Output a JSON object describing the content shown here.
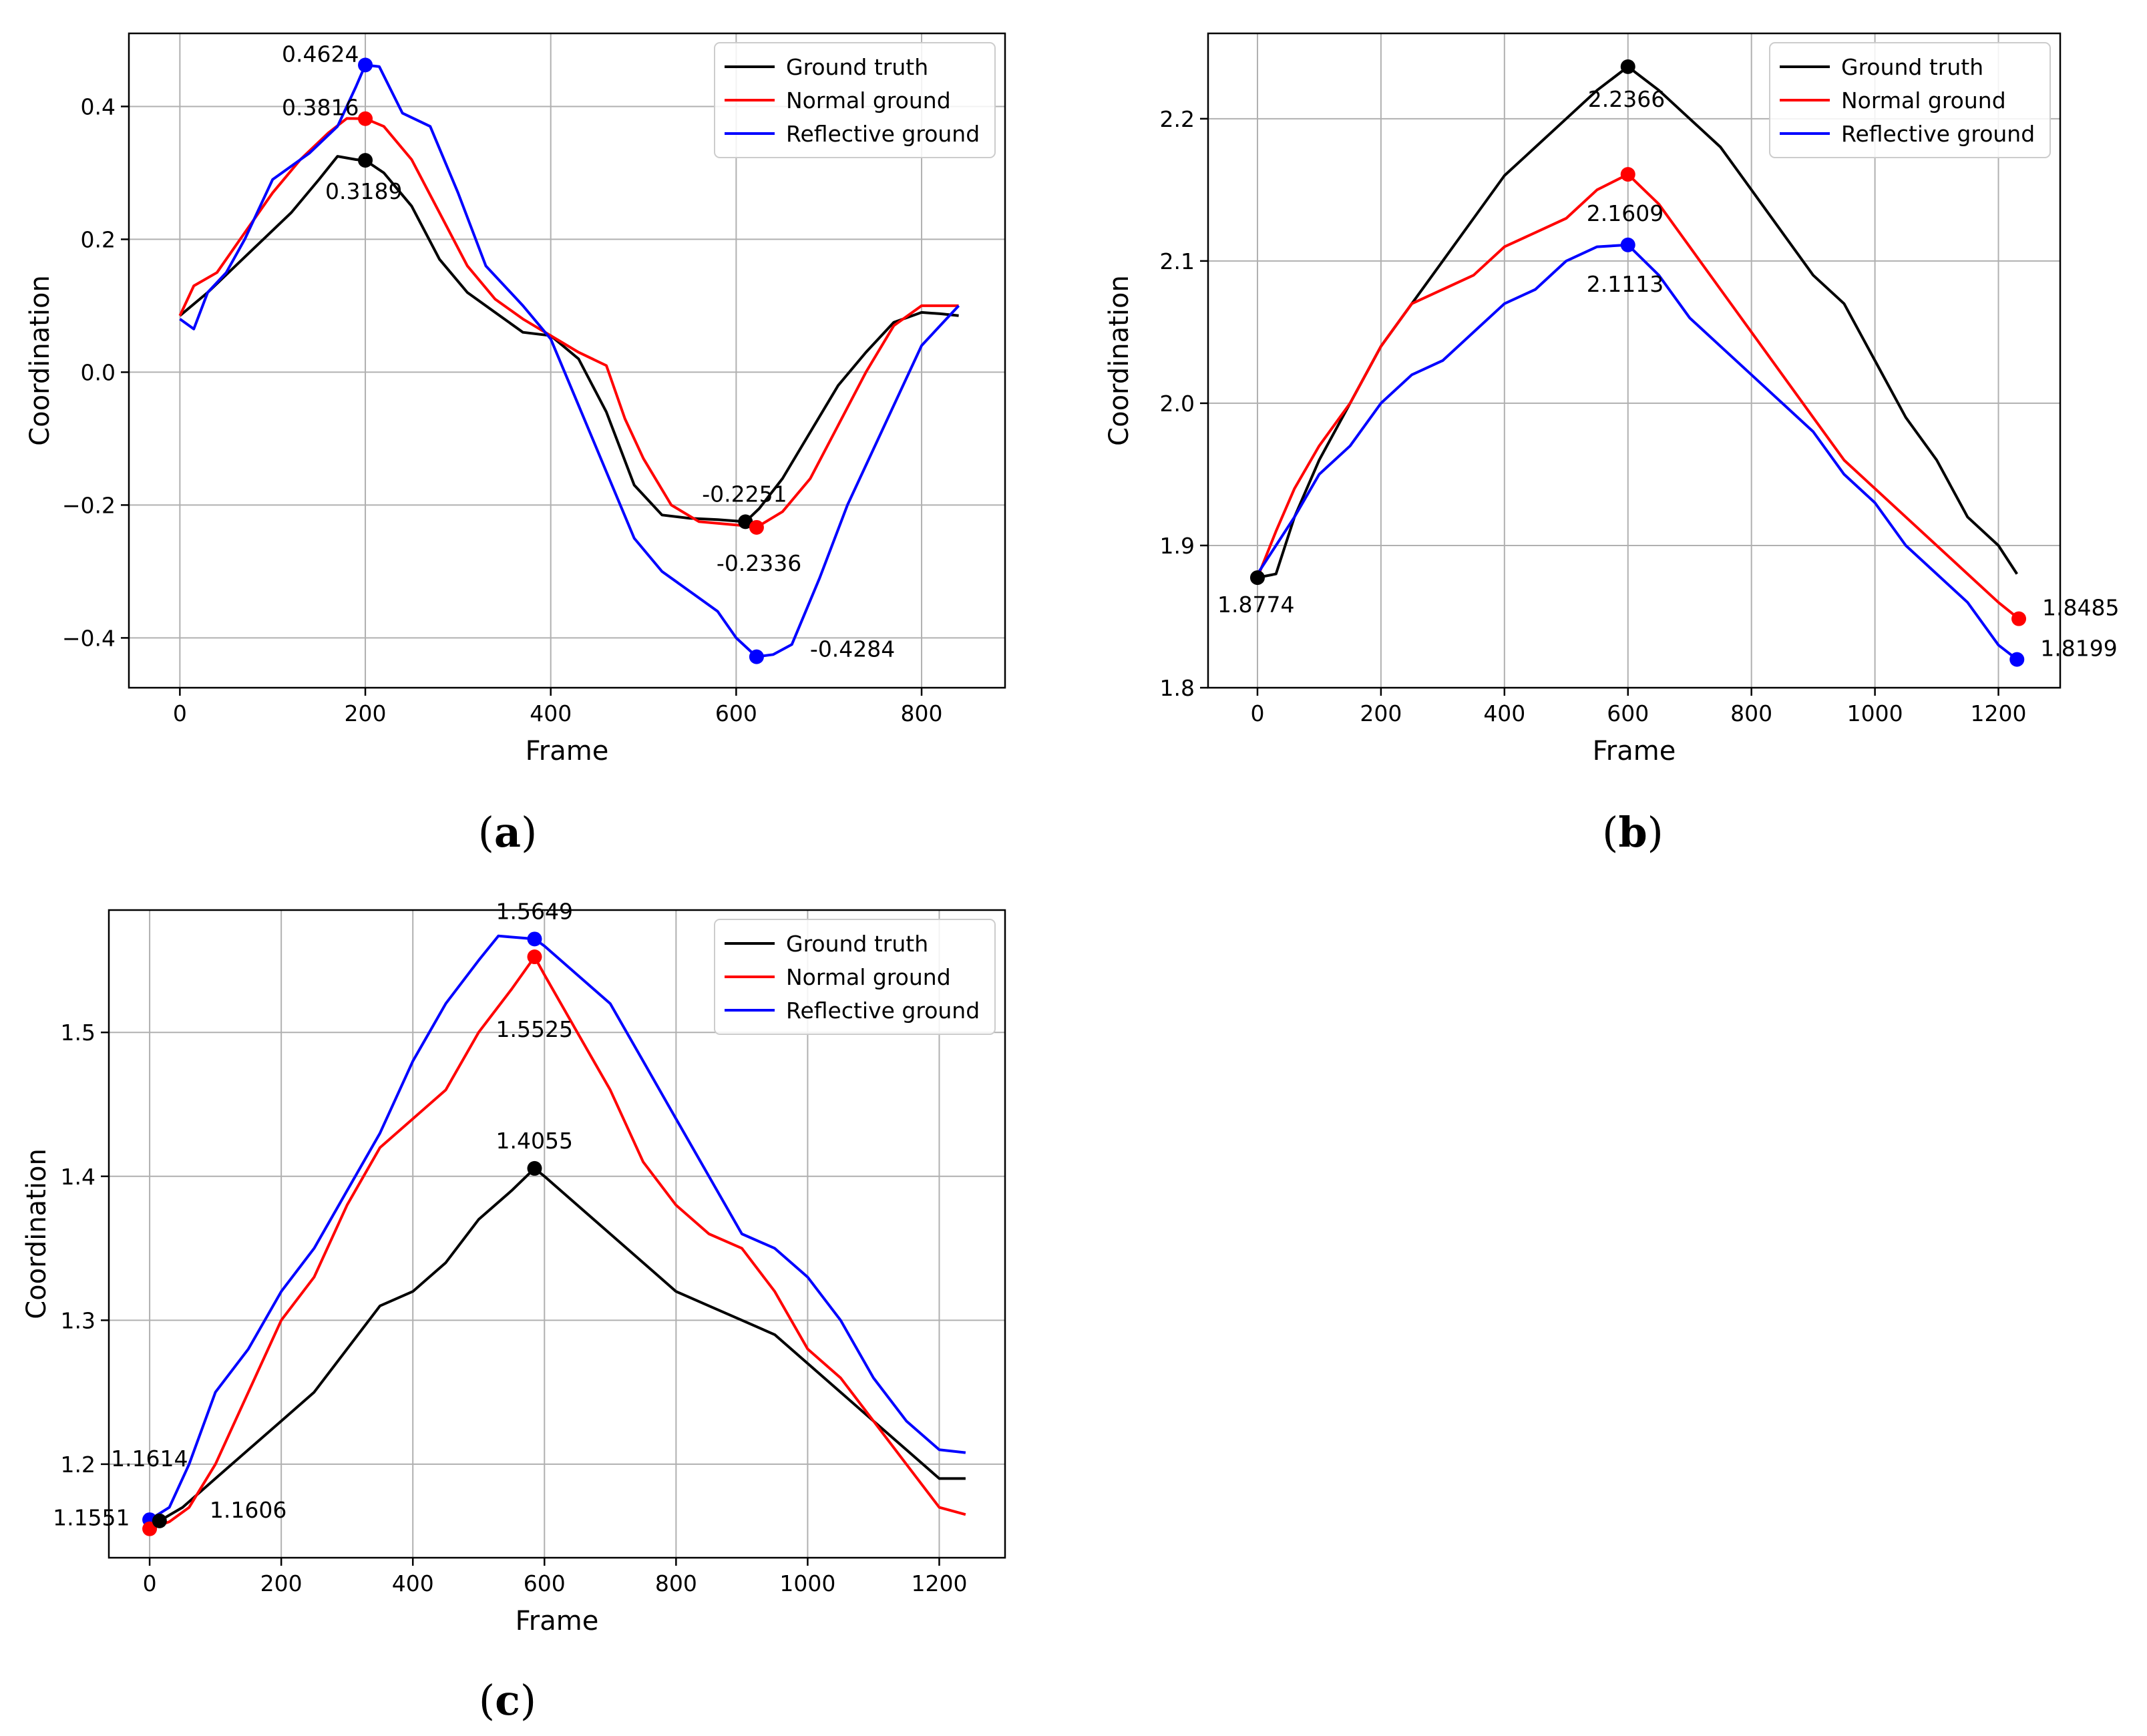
{
  "chart_data": [
    {
      "id": "a",
      "type": "line",
      "caption": "a",
      "xlabel": "Frame",
      "ylabel": "Coordination",
      "xlim": [
        -55,
        890
      ],
      "ylim": [
        -0.475,
        0.51
      ],
      "xticks": [
        0,
        200,
        400,
        600,
        800
      ],
      "xtick_labels": [
        "0",
        "200",
        "400",
        "600",
        "800"
      ],
      "yticks": [
        -0.4,
        -0.2,
        0.0,
        0.2,
        0.4
      ],
      "ytick_labels": [
        "−0.4",
        "−0.2",
        "0.0",
        "0.2",
        "0.4"
      ],
      "grid": true,
      "legend_position": "top-right",
      "series": [
        {
          "name": "Ground truth",
          "color": "#000000",
          "x": [
            0,
            30,
            60,
            90,
            120,
            150,
            170,
            190,
            200,
            220,
            250,
            280,
            310,
            340,
            370,
            400,
            430,
            460,
            490,
            520,
            550,
            580,
            610,
            625,
            650,
            680,
            710,
            740,
            770,
            800,
            820,
            840
          ],
          "y": [
            0.085,
            0.12,
            0.16,
            0.2,
            0.24,
            0.29,
            0.325,
            0.32,
            0.3189,
            0.3,
            0.25,
            0.17,
            0.12,
            0.09,
            0.06,
            0.055,
            0.02,
            -0.06,
            -0.17,
            -0.215,
            -0.22,
            -0.222,
            -0.2251,
            -0.205,
            -0.16,
            -0.09,
            -0.02,
            0.03,
            0.075,
            0.09,
            0.088,
            0.085
          ]
        },
        {
          "name": "Normal ground",
          "color": "#ff0000",
          "x": [
            0,
            15,
            40,
            70,
            100,
            130,
            160,
            180,
            200,
            220,
            250,
            280,
            310,
            340,
            370,
            400,
            430,
            460,
            480,
            500,
            530,
            560,
            600,
            622,
            650,
            680,
            710,
            740,
            770,
            800,
            830,
            840
          ],
          "y": [
            0.085,
            0.13,
            0.15,
            0.21,
            0.27,
            0.32,
            0.36,
            0.382,
            0.3816,
            0.37,
            0.32,
            0.24,
            0.16,
            0.11,
            0.08,
            0.055,
            0.03,
            0.01,
            -0.07,
            -0.13,
            -0.2,
            -0.225,
            -0.23,
            -0.2336,
            -0.21,
            -0.16,
            -0.08,
            0.0,
            0.07,
            0.1,
            0.1,
            0.1
          ]
        },
        {
          "name": "Reflective ground",
          "color": "#0000ff",
          "x": [
            0,
            15,
            30,
            50,
            70,
            100,
            140,
            170,
            190,
            200,
            215,
            240,
            270,
            300,
            330,
            370,
            400,
            430,
            460,
            490,
            520,
            550,
            580,
            600,
            622,
            640,
            660,
            690,
            720,
            760,
            800,
            840
          ],
          "y": [
            0.08,
            0.065,
            0.12,
            0.15,
            0.2,
            0.29,
            0.33,
            0.37,
            0.43,
            0.4624,
            0.46,
            0.39,
            0.37,
            0.27,
            0.16,
            0.1,
            0.05,
            -0.05,
            -0.15,
            -0.25,
            -0.3,
            -0.33,
            -0.36,
            -0.4,
            -0.4284,
            -0.425,
            -0.41,
            -0.31,
            -0.2,
            -0.08,
            0.04,
            0.1
          ]
        }
      ],
      "points": [
        {
          "series": "Reflective ground",
          "x": 200,
          "y": 0.4624,
          "label": "0.4624",
          "color": "#0000ff"
        },
        {
          "series": "Normal ground",
          "x": 200,
          "y": 0.3816,
          "label": "0.3816",
          "color": "#ff0000"
        },
        {
          "series": "Ground truth",
          "x": 200,
          "y": 0.3189,
          "label": "0.3189",
          "color": "#000000"
        },
        {
          "series": "Ground truth",
          "x": 610,
          "y": -0.2251,
          "label": "-0.2251",
          "color": "#000000"
        },
        {
          "series": "Normal ground",
          "x": 622,
          "y": -0.2336,
          "label": "-0.2336",
          "color": "#ff0000"
        },
        {
          "series": "Reflective ground",
          "x": 622,
          "y": -0.4284,
          "label": "-0.4284",
          "color": "#0000ff"
        }
      ]
    },
    {
      "id": "b",
      "type": "line",
      "caption": "b",
      "xlabel": "Frame",
      "ylabel": "Coordination",
      "xlim": [
        -80,
        1300
      ],
      "ylim": [
        1.8,
        2.26
      ],
      "xticks": [
        0,
        200,
        400,
        600,
        800,
        1000,
        1200
      ],
      "xtick_labels": [
        "0",
        "200",
        "400",
        "600",
        "800",
        "1000",
        "1200"
      ],
      "yticks": [
        1.8,
        1.9,
        2.0,
        2.1,
        2.2
      ],
      "ytick_labels": [
        "1.8",
        "1.9",
        "2.0",
        "2.1",
        "2.2"
      ],
      "grid": true,
      "legend_position": "top-right",
      "series": [
        {
          "name": "Ground truth",
          "color": "#000000",
          "x": [
            0,
            30,
            60,
            100,
            150,
            200,
            250,
            300,
            350,
            400,
            450,
            500,
            550,
            600,
            650,
            700,
            750,
            800,
            850,
            900,
            950,
            1000,
            1050,
            1100,
            1150,
            1200,
            1230
          ],
          "y": [
            1.8774,
            1.88,
            1.92,
            1.96,
            2.0,
            2.04,
            2.07,
            2.1,
            2.13,
            2.16,
            2.18,
            2.2,
            2.22,
            2.2366,
            2.22,
            2.2,
            2.18,
            2.15,
            2.12,
            2.09,
            2.07,
            2.03,
            1.99,
            1.96,
            1.92,
            1.9,
            1.88
          ]
        },
        {
          "name": "Normal ground",
          "color": "#ff0000",
          "x": [
            0,
            30,
            60,
            100,
            150,
            200,
            250,
            300,
            350,
            400,
            450,
            500,
            550,
            600,
            650,
            700,
            750,
            800,
            850,
            900,
            950,
            1000,
            1050,
            1100,
            1150,
            1200,
            1233
          ],
          "y": [
            1.8774,
            1.91,
            1.94,
            1.97,
            2.0,
            2.04,
            2.07,
            2.08,
            2.09,
            2.11,
            2.12,
            2.13,
            2.15,
            2.1609,
            2.14,
            2.11,
            2.08,
            2.05,
            2.02,
            1.99,
            1.96,
            1.94,
            1.92,
            1.9,
            1.88,
            1.86,
            1.8485
          ]
        },
        {
          "name": "Reflective ground",
          "color": "#0000ff",
          "x": [
            0,
            30,
            60,
            100,
            150,
            200,
            250,
            300,
            350,
            400,
            450,
            500,
            550,
            600,
            650,
            700,
            750,
            800,
            850,
            900,
            950,
            1000,
            1050,
            1100,
            1150,
            1200,
            1230
          ],
          "y": [
            1.88,
            1.9,
            1.92,
            1.95,
            1.97,
            2.0,
            2.02,
            2.03,
            2.05,
            2.07,
            2.08,
            2.1,
            2.11,
            2.1113,
            2.09,
            2.06,
            2.04,
            2.02,
            2.0,
            1.98,
            1.95,
            1.93,
            1.9,
            1.88,
            1.86,
            1.83,
            1.8199
          ]
        }
      ],
      "points": [
        {
          "series": "Ground truth",
          "x": 600,
          "y": 2.2366,
          "label": "2.2366",
          "color": "#000000"
        },
        {
          "series": "Normal ground",
          "x": 600,
          "y": 2.1609,
          "label": "2.1609",
          "color": "#ff0000"
        },
        {
          "series": "Reflective ground",
          "x": 600,
          "y": 2.1113,
          "label": "2.1113",
          "color": "#0000ff"
        },
        {
          "series": "Ground truth",
          "x": 0,
          "y": 1.8774,
          "label": "1.8774",
          "color": "#000000"
        },
        {
          "series": "Normal ground",
          "x": 1233,
          "y": 1.8485,
          "label": "1.8485",
          "color": "#ff0000"
        },
        {
          "series": "Reflective ground",
          "x": 1230,
          "y": 1.8199,
          "label": "1.8199",
          "color": "#0000ff"
        }
      ]
    },
    {
      "id": "c",
      "type": "line",
      "caption": "c",
      "xlabel": "Frame",
      "ylabel": "Coordination",
      "xlim": [
        -62,
        1300
      ],
      "ylim": [
        1.135,
        1.585
      ],
      "xticks": [
        0,
        200,
        400,
        600,
        800,
        1000,
        1200
      ],
      "xtick_labels": [
        "0",
        "200",
        "400",
        "600",
        "800",
        "1000",
        "1200"
      ],
      "yticks": [
        1.2,
        1.3,
        1.4,
        1.5
      ],
      "ytick_labels": [
        "1.2",
        "1.3",
        "1.4",
        "1.5"
      ],
      "grid": true,
      "legend_position": "top-right",
      "series": [
        {
          "name": "Ground truth",
          "color": "#000000",
          "x": [
            0,
            15,
            50,
            100,
            150,
            200,
            250,
            300,
            350,
            400,
            450,
            500,
            550,
            585,
            600,
            650,
            700,
            750,
            800,
            850,
            900,
            950,
            1000,
            1050,
            1100,
            1150,
            1200,
            1240
          ],
          "y": [
            1.16,
            1.1606,
            1.17,
            1.19,
            1.21,
            1.23,
            1.25,
            1.28,
            1.31,
            1.32,
            1.34,
            1.37,
            1.39,
            1.4055,
            1.4,
            1.38,
            1.36,
            1.34,
            1.32,
            1.31,
            1.3,
            1.29,
            1.27,
            1.25,
            1.23,
            1.21,
            1.19,
            1.19
          ]
        },
        {
          "name": "Normal ground",
          "color": "#ff0000",
          "x": [
            0,
            30,
            60,
            100,
            150,
            200,
            250,
            300,
            350,
            400,
            450,
            500,
            550,
            585,
            600,
            650,
            700,
            750,
            800,
            850,
            900,
            950,
            1000,
            1050,
            1100,
            1150,
            1200,
            1240
          ],
          "y": [
            1.1551,
            1.16,
            1.17,
            1.2,
            1.25,
            1.3,
            1.33,
            1.38,
            1.42,
            1.44,
            1.46,
            1.5,
            1.53,
            1.5525,
            1.54,
            1.5,
            1.46,
            1.41,
            1.38,
            1.36,
            1.35,
            1.32,
            1.28,
            1.26,
            1.23,
            1.2,
            1.17,
            1.165
          ]
        },
        {
          "name": "Reflective ground",
          "color": "#0000ff",
          "x": [
            0,
            30,
            60,
            100,
            150,
            200,
            250,
            300,
            350,
            400,
            450,
            500,
            530,
            585,
            600,
            650,
            700,
            750,
            800,
            850,
            900,
            950,
            1000,
            1050,
            1100,
            1150,
            1200,
            1240
          ],
          "y": [
            1.1614,
            1.17,
            1.2,
            1.25,
            1.28,
            1.32,
            1.35,
            1.39,
            1.43,
            1.48,
            1.52,
            1.55,
            1.567,
            1.5649,
            1.56,
            1.54,
            1.52,
            1.48,
            1.44,
            1.4,
            1.36,
            1.35,
            1.33,
            1.3,
            1.26,
            1.23,
            1.21,
            1.208
          ]
        }
      ],
      "points": [
        {
          "series": "Reflective ground",
          "x": 585,
          "y": 1.5649,
          "label": "1.5649",
          "color": "#0000ff"
        },
        {
          "series": "Normal ground",
          "x": 585,
          "y": 1.5525,
          "label": "1.5525",
          "color": "#ff0000"
        },
        {
          "series": "Ground truth",
          "x": 585,
          "y": 1.4055,
          "label": "1.4055",
          "color": "#000000"
        },
        {
          "series": "Reflective ground",
          "x": 0,
          "y": 1.1614,
          "label": "1.1614",
          "color": "#0000ff"
        },
        {
          "series": "Normal ground",
          "x": 0,
          "y": 1.1551,
          "label": "1.1551",
          "color": "#ff0000"
        },
        {
          "series": "Ground truth",
          "x": 15,
          "y": 1.1606,
          "label": "1.1606",
          "color": "#000000"
        }
      ]
    }
  ]
}
